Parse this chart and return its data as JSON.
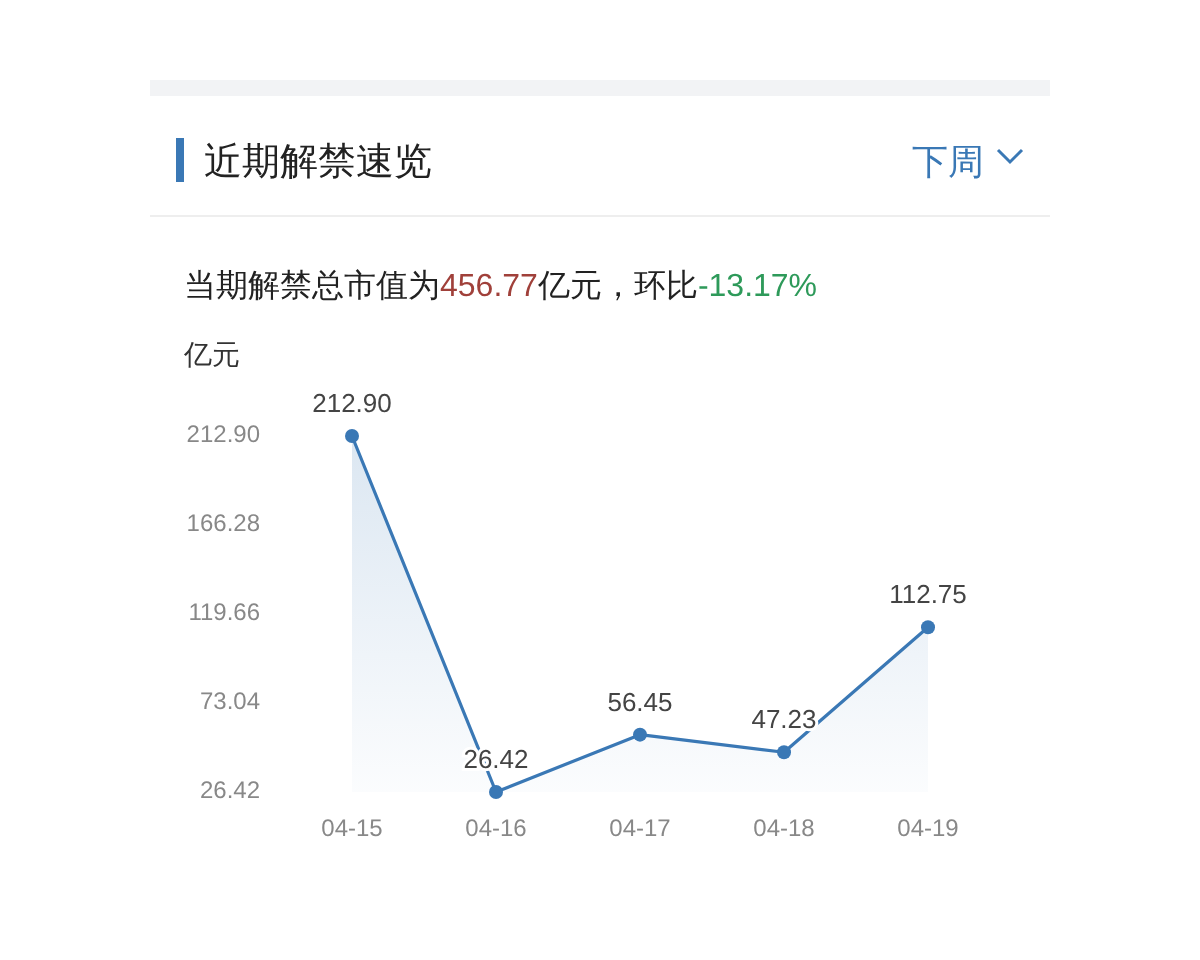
{
  "chart_data": {
    "type": "area",
    "title": "近期解禁速览",
    "subtitle": "当期解禁总市值为456.77亿元，环比-13.17%",
    "ylabel": "亿元",
    "annotations": [
      "下周"
    ],
    "categories": [
      "04-15",
      "04-16",
      "04-17",
      "04-18",
      "04-19"
    ],
    "series": [
      {
        "color": "#3a78b5",
        "values": [
          212.9,
          26.42,
          56.45,
          47.23,
          112.75
        ]
      }
    ],
    "value_labels": [
      "212.90",
      "26.42",
      "56.45",
      "47.23",
      "112.75"
    ],
    "ylim": [
      26.42,
      212.9
    ],
    "yticks": [
      26.42,
      73.04,
      119.66,
      166.28,
      {
        "value": 212.9,
        "label": "212.90"
      }
    ],
    "marker": "circle",
    "grid": false
  }
}
